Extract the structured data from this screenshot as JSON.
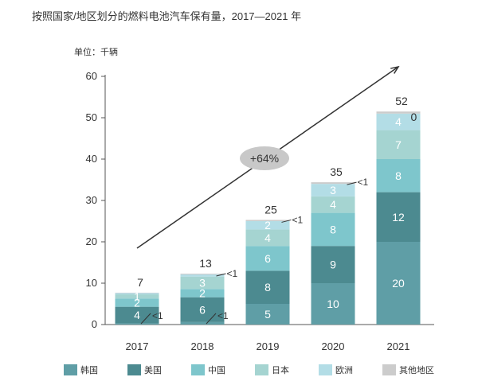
{
  "title": "按照国家/地区划分的燃料电池汽车保有量，2017—2021 年",
  "unit_label": "单位：千辆",
  "chart_data": {
    "type": "bar",
    "stacked": true,
    "categories": [
      "2017",
      "2018",
      "2019",
      "2020",
      "2021"
    ],
    "ylim": [
      0,
      60
    ],
    "yticks": [
      0,
      10,
      20,
      30,
      40,
      50,
      60
    ],
    "series": [
      {
        "name": "韩国",
        "color": "#5f9ea6",
        "values": [
          0.3,
          0.6,
          5,
          10,
          20
        ],
        "labels": [
          "<1",
          "<1",
          "5",
          "10",
          "20"
        ]
      },
      {
        "name": "美国",
        "color": "#4c8a90",
        "values": [
          4,
          6,
          8,
          9,
          12
        ],
        "labels": [
          "4",
          "6",
          "8",
          "9",
          "12"
        ]
      },
      {
        "name": "中国",
        "color": "#7ec6cc",
        "values": [
          2,
          2,
          6,
          8,
          8
        ],
        "labels": [
          "2",
          "2",
          "6",
          "8",
          "8"
        ]
      },
      {
        "name": "日本",
        "color": "#a5d4d1",
        "values": [
          1,
          3,
          4,
          4,
          7
        ],
        "labels": [
          "1",
          "3",
          "4",
          "4",
          "7"
        ]
      },
      {
        "name": "欧洲",
        "color": "#b3dde6",
        "values": [
          0.3,
          0.5,
          2,
          3,
          4
        ],
        "labels": [
          "",
          "",
          "2",
          "3",
          "4"
        ]
      },
      {
        "name": "其他地区",
        "color": "#cccccc",
        "values": [
          0.1,
          0.2,
          0.3,
          0.4,
          0.5
        ],
        "labels": [
          "",
          "<1",
          "<1",
          "<1",
          "0"
        ]
      }
    ],
    "totals": [
      "7",
      "13",
      "25",
      "35",
      "52"
    ],
    "annotation": "+64%"
  },
  "colors": {
    "axis": "#555555",
    "arrow": "#333333",
    "growth_bubble": "#c8c8c8"
  }
}
